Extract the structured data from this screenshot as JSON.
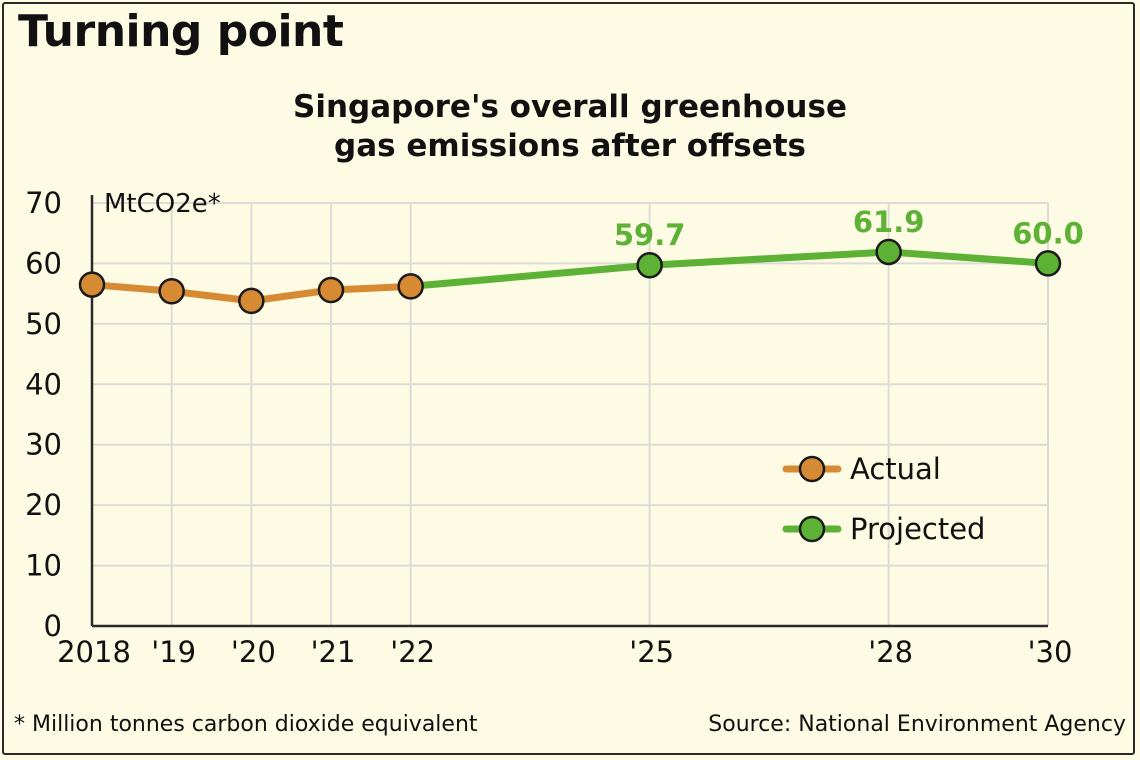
{
  "headline": "Turning point",
  "subtitle_line1": "Singapore's overall greenhouse",
  "subtitle_line2": "gas emissions after offsets",
  "footnote": "* Million tonnes carbon dioxide equivalent",
  "source": "Source: National Environment Agency",
  "chart_data": {
    "type": "line",
    "title": "Singapore's overall greenhouse gas emissions after offsets",
    "ylabel": "MtCO2e*",
    "ylim": [
      0,
      70
    ],
    "yticks": [
      0,
      10,
      20,
      30,
      40,
      50,
      60,
      70
    ],
    "x": [
      2018,
      2019,
      2020,
      2021,
      2022,
      2025,
      2028,
      2030
    ],
    "xtick_labels": [
      "2018",
      "'19",
      "'20",
      "'21",
      "'22",
      "'25",
      "'28",
      "'30"
    ],
    "grid": true,
    "legend_position": "lower-right",
    "series": [
      {
        "name": "Actual",
        "color": "#d68a34",
        "points": [
          {
            "x": 2018,
            "y": 56.5
          },
          {
            "x": 2019,
            "y": 55.4
          },
          {
            "x": 2020,
            "y": 53.8
          },
          {
            "x": 2021,
            "y": 55.6
          },
          {
            "x": 2022,
            "y": 56.2
          }
        ]
      },
      {
        "name": "Projected",
        "color": "#5db236",
        "points": [
          {
            "x": 2022,
            "y": 56.2
          },
          {
            "x": 2025,
            "y": 59.7,
            "label": "59.7"
          },
          {
            "x": 2028,
            "y": 61.9,
            "label": "61.9"
          },
          {
            "x": 2030,
            "y": 60.0,
            "label": "60.0"
          }
        ]
      }
    ]
  }
}
